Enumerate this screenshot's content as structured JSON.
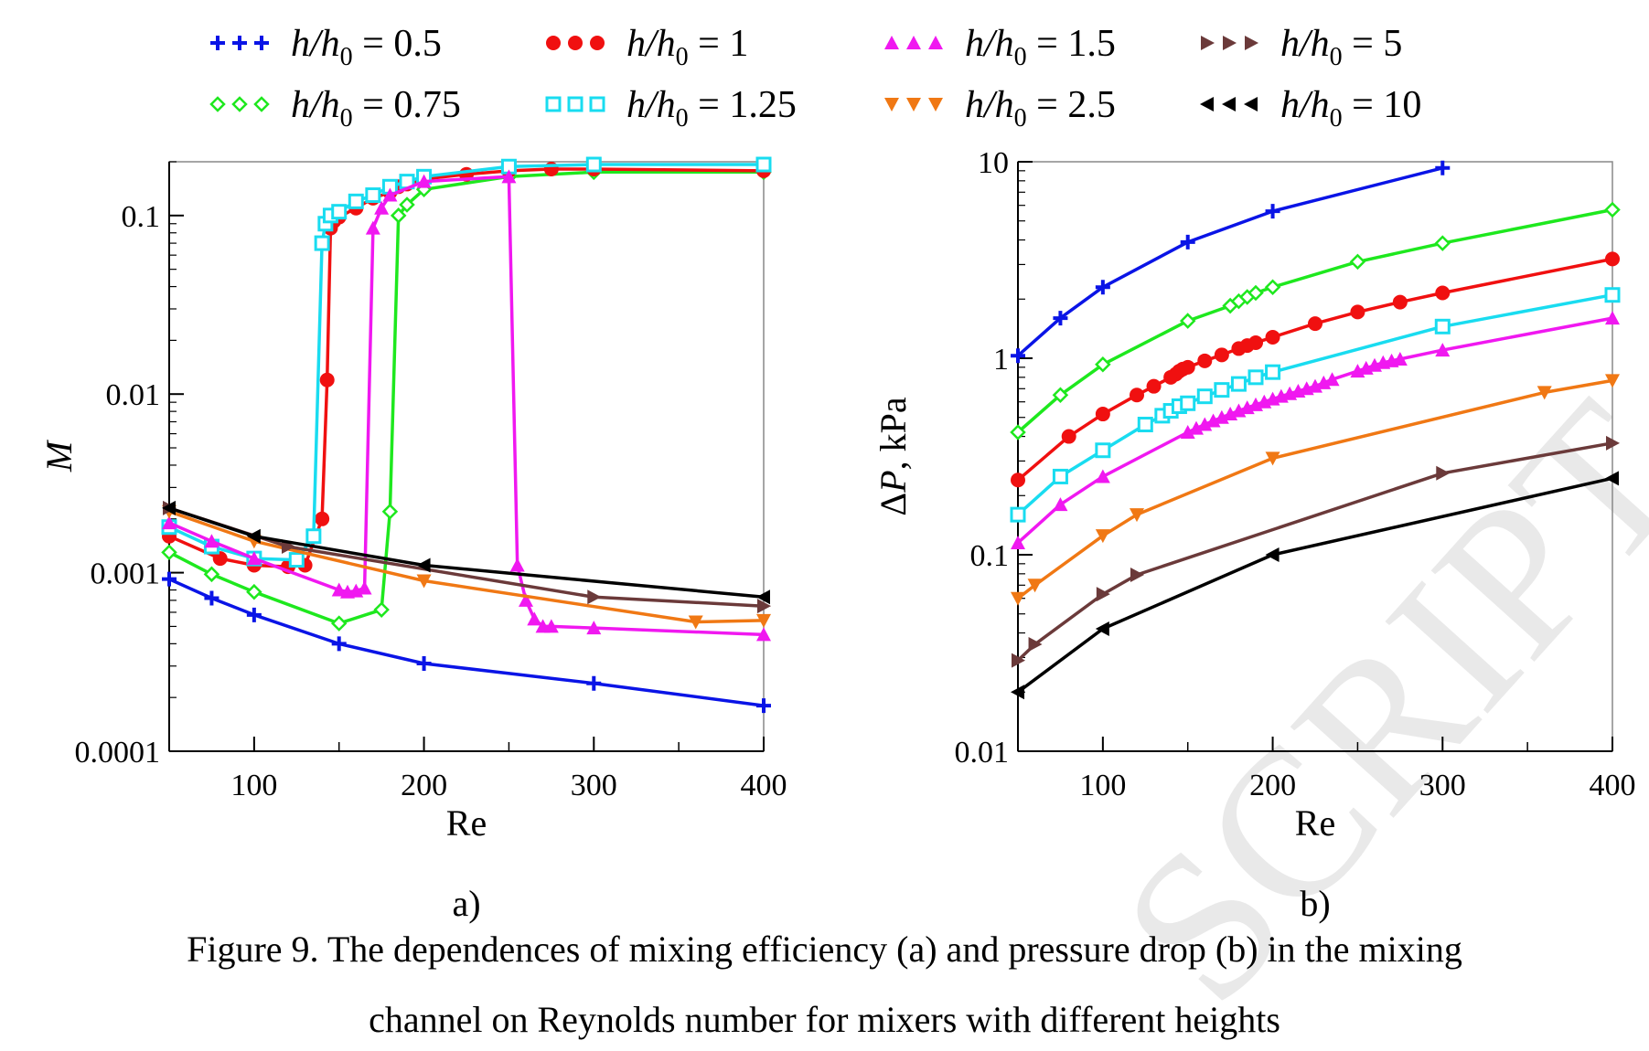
{
  "figure": {
    "caption_line1": "Figure 9. The dependences of mixing efficiency (a) and pressure drop (b) in the mixing",
    "caption_line2": "channel on Reynolds number for mixers with different heights",
    "watermark": "SCRIPT"
  },
  "legend": [
    {
      "key": "s05",
      "label": "h/h0 = 0.5",
      "ratio": "0.5",
      "color": "#0a14e6",
      "marker": "plus"
    },
    {
      "key": "s1",
      "label": "h/h0 = 1",
      "ratio": "1",
      "color": "#f01010",
      "marker": "circle"
    },
    {
      "key": "s15",
      "label": "h/h0 = 1.5",
      "ratio": "1.5",
      "color": "#f018f0",
      "marker": "triangle-up"
    },
    {
      "key": "s5",
      "label": "h/h0 = 5",
      "ratio": "5",
      "color": "#6b3a3a",
      "marker": "triangle-right"
    },
    {
      "key": "s075",
      "label": "h/h0 = 0.75",
      "ratio": "0.75",
      "color": "#1ee81e",
      "marker": "diamond"
    },
    {
      "key": "s125",
      "label": "h/h0 = 1.25",
      "ratio": "1.25",
      "color": "#19dcf0",
      "marker": "square"
    },
    {
      "key": "s25",
      "label": "h/h0 = 2.5",
      "ratio": "2.5",
      "color": "#f07814",
      "marker": "triangle-down"
    },
    {
      "key": "s10",
      "label": "h/h0 = 10",
      "ratio": "10",
      "color": "#000000",
      "marker": "triangle-left"
    }
  ],
  "chart_data": [
    {
      "type": "line",
      "panel_label": "a)",
      "xlabel": "Re",
      "ylabel": "M",
      "xlim": [
        50,
        400
      ],
      "ylim": [
        0.0001,
        0.2
      ],
      "yscale": "log",
      "xticks": [
        100,
        200,
        300,
        400
      ],
      "yticks": [
        0.0001,
        0.001,
        0.01,
        0.1
      ],
      "xtick_labels": [
        "100",
        "200",
        "300",
        "400"
      ],
      "ytick_labels": [
        "0.0001",
        "0.001",
        "0.01",
        "0.1"
      ],
      "grid": false,
      "series": [
        {
          "key": "s05",
          "x": [
            50,
            75,
            100,
            150,
            200,
            300,
            400
          ],
          "y": [
            0.00092,
            0.00072,
            0.00058,
            0.0004,
            0.00031,
            0.00024,
            0.00018
          ]
        },
        {
          "key": "s075",
          "x": [
            50,
            75,
            100,
            150,
            175,
            180,
            185,
            190,
            200,
            250,
            300,
            400
          ],
          "y": [
            0.0013,
            0.00098,
            0.00078,
            0.00052,
            0.00062,
            0.0022,
            0.1,
            0.115,
            0.14,
            0.165,
            0.175,
            0.175
          ]
        },
        {
          "key": "s1",
          "x": [
            50,
            80,
            100,
            120,
            130,
            140,
            143,
            145,
            147,
            150,
            160,
            170,
            180,
            185,
            190,
            200,
            225,
            250,
            275,
            300,
            400
          ],
          "y": [
            0.0016,
            0.0012,
            0.0011,
            0.00108,
            0.0011,
            0.002,
            0.012,
            0.085,
            0.093,
            0.098,
            0.11,
            0.125,
            0.135,
            0.145,
            0.15,
            0.16,
            0.17,
            0.178,
            0.182,
            0.182,
            0.178
          ]
        },
        {
          "key": "s125",
          "x": [
            50,
            75,
            100,
            125,
            135,
            140,
            142,
            145,
            150,
            160,
            170,
            180,
            190,
            200,
            250,
            300,
            400
          ],
          "y": [
            0.0018,
            0.0014,
            0.0012,
            0.00118,
            0.0016,
            0.07,
            0.09,
            0.1,
            0.105,
            0.12,
            0.13,
            0.145,
            0.155,
            0.165,
            0.188,
            0.193,
            0.193
          ]
        },
        {
          "key": "s15",
          "x": [
            50,
            75,
            100,
            150,
            155,
            160,
            165,
            170,
            175,
            180,
            200,
            250,
            255,
            260,
            265,
            270,
            275,
            300,
            400
          ],
          "y": [
            0.0019,
            0.0015,
            0.0012,
            0.0008,
            0.00078,
            0.00079,
            0.00082,
            0.085,
            0.11,
            0.13,
            0.155,
            0.165,
            0.0011,
            0.0007,
            0.00055,
            0.0005,
            0.0005,
            0.00049,
            0.00045
          ]
        },
        {
          "key": "s25",
          "x": [
            50,
            100,
            200,
            360,
            400
          ],
          "y": [
            0.0022,
            0.0015,
            0.0009,
            0.00053,
            0.00054
          ]
        },
        {
          "key": "s5",
          "x": [
            50,
            120,
            300,
            400
          ],
          "y": [
            0.0023,
            0.0014,
            0.00073,
            0.00065
          ]
        },
        {
          "key": "s10",
          "x": [
            50,
            100,
            200,
            400
          ],
          "y": [
            0.0023,
            0.0016,
            0.0011,
            0.00073
          ]
        }
      ]
    },
    {
      "type": "line",
      "panel_label": "b)",
      "xlabel": "Re",
      "ylabel": "ΔP, kPa",
      "xlim": [
        50,
        400
      ],
      "ylim": [
        0.01,
        10
      ],
      "yscale": "log",
      "xticks": [
        100,
        200,
        300,
        400
      ],
      "yticks": [
        0.01,
        0.1,
        1,
        10
      ],
      "xtick_labels": [
        "100",
        "200",
        "300",
        "400"
      ],
      "ytick_labels": [
        "0.01",
        "0.1",
        "1",
        "10"
      ],
      "grid": false,
      "series": [
        {
          "key": "s05",
          "x": [
            50,
            75,
            100,
            150,
            200,
            300
          ],
          "y": [
            1.03,
            1.6,
            2.3,
            3.9,
            5.6,
            9.3
          ]
        },
        {
          "key": "s075",
          "x": [
            50,
            75,
            100,
            150,
            175,
            180,
            185,
            190,
            200,
            250,
            300,
            400
          ],
          "y": [
            0.42,
            0.65,
            0.93,
            1.55,
            1.85,
            1.95,
            2.05,
            2.15,
            2.3,
            3.1,
            3.85,
            5.7
          ]
        },
        {
          "key": "s1",
          "x": [
            50,
            80,
            100,
            120,
            130,
            140,
            143,
            145,
            147,
            150,
            160,
            170,
            180,
            185,
            190,
            200,
            225,
            250,
            275,
            300,
            400
          ],
          "y": [
            0.24,
            0.4,
            0.52,
            0.65,
            0.72,
            0.8,
            0.83,
            0.86,
            0.88,
            0.9,
            0.97,
            1.04,
            1.12,
            1.16,
            1.2,
            1.28,
            1.5,
            1.72,
            1.93,
            2.15,
            3.2
          ]
        },
        {
          "key": "s125",
          "x": [
            50,
            75,
            100,
            125,
            135,
            140,
            145,
            150,
            160,
            170,
            180,
            190,
            200,
            300,
            400
          ],
          "y": [
            0.16,
            0.25,
            0.34,
            0.46,
            0.51,
            0.54,
            0.57,
            0.59,
            0.64,
            0.69,
            0.74,
            0.8,
            0.85,
            1.45,
            2.1
          ]
        },
        {
          "key": "s15",
          "x": [
            50,
            75,
            100,
            150,
            155,
            160,
            165,
            170,
            175,
            180,
            185,
            190,
            195,
            200,
            205,
            210,
            215,
            220,
            225,
            230,
            235,
            250,
            255,
            260,
            265,
            270,
            275,
            300,
            400
          ],
          "y": [
            0.115,
            0.18,
            0.25,
            0.42,
            0.44,
            0.46,
            0.48,
            0.5,
            0.52,
            0.54,
            0.56,
            0.58,
            0.6,
            0.62,
            0.64,
            0.66,
            0.68,
            0.7,
            0.72,
            0.75,
            0.78,
            0.86,
            0.89,
            0.92,
            0.95,
            0.97,
            0.99,
            1.1,
            1.6
          ]
        },
        {
          "key": "s25",
          "x": [
            50,
            60,
            100,
            120,
            200,
            360,
            400
          ],
          "y": [
            0.06,
            0.07,
            0.125,
            0.16,
            0.31,
            0.67,
            0.77
          ]
        },
        {
          "key": "s5",
          "x": [
            50,
            60,
            100,
            120,
            300,
            400
          ],
          "y": [
            0.029,
            0.035,
            0.063,
            0.079,
            0.26,
            0.37
          ]
        },
        {
          "key": "s10",
          "x": [
            50,
            100,
            200,
            400
          ],
          "y": [
            0.02,
            0.042,
            0.1,
            0.245
          ]
        }
      ]
    }
  ]
}
